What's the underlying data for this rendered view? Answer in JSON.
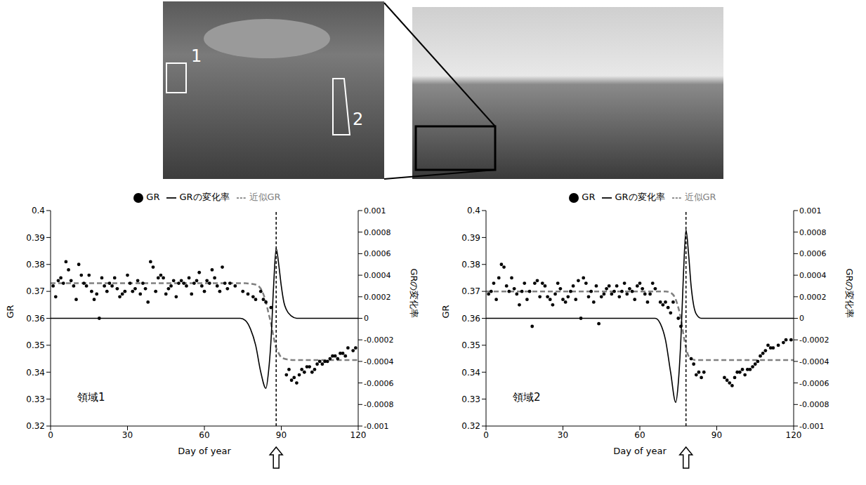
{
  "photos": {
    "labels": [
      "1",
      "2"
    ]
  },
  "chart_data": [
    {
      "type": "line",
      "annotation": "領域1",
      "x_label": "Day of year",
      "y_label": "GR",
      "y2_label": "GRの変化率",
      "xlim": [
        0,
        120
      ],
      "xticks": [
        0,
        30,
        60,
        90,
        120
      ],
      "ylim": [
        0.32,
        0.4
      ],
      "yticks": [
        0.32,
        0.33,
        0.34,
        0.35,
        0.36,
        0.37,
        0.38,
        0.39,
        0.4
      ],
      "y2lim": [
        -0.001,
        0.001
      ],
      "y2ticks": [
        -0.001,
        -0.0008,
        -0.0006,
        -0.0004,
        -0.0002,
        0,
        0.0002,
        0.0004,
        0.0006,
        0.0008,
        0.001
      ],
      "reference_x": 88,
      "legend": "top",
      "series": [
        {
          "name": "GR",
          "type": "scatter",
          "marker": "circle",
          "color": "#000000",
          "x": [
            1,
            2,
            3,
            4,
            5,
            6,
            7,
            8,
            9,
            10,
            11,
            12,
            13,
            14,
            15,
            16,
            17,
            18,
            19,
            20,
            21,
            22,
            23,
            24,
            25,
            26,
            27,
            28,
            29,
            30,
            31,
            32,
            33,
            34,
            35,
            36,
            37,
            38,
            39,
            40,
            41,
            42,
            43,
            44,
            45,
            46,
            47,
            48,
            49,
            50,
            51,
            52,
            53,
            54,
            55,
            56,
            57,
            58,
            59,
            60,
            61,
            62,
            63,
            64,
            65,
            66,
            67,
            68,
            69,
            70,
            72,
            75,
            77,
            79,
            80,
            82,
            83,
            84,
            86,
            92,
            93,
            94,
            95,
            96,
            97,
            98,
            99,
            100,
            101,
            102,
            103,
            104,
            105,
            106,
            107,
            108,
            109,
            110,
            111,
            112,
            113,
            114,
            115,
            116,
            118,
            119
          ],
          "values": [
            0.372,
            0.368,
            0.374,
            0.375,
            0.373,
            0.381,
            0.378,
            0.374,
            0.372,
            0.367,
            0.38,
            0.376,
            0.373,
            0.372,
            0.376,
            0.37,
            0.367,
            0.369,
            0.36,
            0.375,
            0.372,
            0.37,
            0.373,
            0.372,
            0.375,
            0.371,
            0.368,
            0.369,
            0.37,
            0.376,
            0.373,
            0.37,
            0.371,
            0.374,
            0.369,
            0.373,
            0.371,
            0.366,
            0.381,
            0.379,
            0.37,
            0.375,
            0.376,
            0.375,
            0.369,
            0.371,
            0.372,
            0.374,
            0.368,
            0.373,
            0.374,
            0.373,
            0.372,
            0.375,
            0.369,
            0.373,
            0.374,
            0.377,
            0.372,
            0.37,
            0.374,
            0.373,
            0.378,
            0.375,
            0.372,
            0.37,
            0.379,
            0.373,
            0.371,
            0.373,
            0.372,
            0.37,
            0.369,
            0.368,
            0.367,
            0.37,
            0.367,
            0.366,
            0.364,
            0.339,
            0.341,
            0.337,
            0.338,
            0.336,
            0.339,
            0.341,
            0.34,
            0.342,
            0.342,
            0.34,
            0.341,
            0.343,
            0.344,
            0.343,
            0.344,
            0.344,
            0.345,
            0.346,
            0.346,
            0.345,
            0.347,
            0.347,
            0.346,
            0.349,
            0.348,
            0.349
          ]
        },
        {
          "name": "近似GR",
          "type": "line",
          "line_style": "dashed",
          "color": "#808080",
          "x": [
            0,
            20,
            40,
            60,
            76,
            78,
            80,
            82,
            84,
            85,
            86,
            87,
            88,
            89,
            90,
            92,
            95,
            120
          ],
          "values": [
            0.373,
            0.373,
            0.373,
            0.373,
            0.373,
            0.3728,
            0.3725,
            0.371,
            0.366,
            0.362,
            0.358,
            0.353,
            0.349,
            0.347,
            0.3455,
            0.3448,
            0.3445,
            0.3445
          ]
        },
        {
          "name": "GRの変化率",
          "type": "line",
          "line_style": "solid",
          "color": "#000000",
          "axis": "y2",
          "x": [
            0,
            74,
            76,
            78,
            80,
            82,
            84,
            85,
            86,
            87,
            88,
            89,
            90,
            91,
            92,
            94,
            96,
            120
          ],
          "values": [
            0,
            0,
            -2e-05,
            -0.0001,
            -0.00025,
            -0.0005,
            -0.00065,
            -0.0005,
            -0.0002,
            0.0003,
            0.00065,
            0.0005,
            0.0003,
            0.00015,
            8e-05,
            2e-05,
            0,
            0
          ]
        }
      ]
    },
    {
      "type": "line",
      "annotation": "領域2",
      "x_label": "Day of year",
      "y_label": "GR",
      "y2_label": "GRの変化率",
      "xlim": [
        0,
        120
      ],
      "xticks": [
        0,
        30,
        60,
        90,
        120
      ],
      "ylim": [
        0.32,
        0.4
      ],
      "yticks": [
        0.32,
        0.33,
        0.34,
        0.35,
        0.36,
        0.37,
        0.38,
        0.39,
        0.4
      ],
      "y2lim": [
        -0.001,
        0.001
      ],
      "y2ticks": [
        -0.001,
        -0.0008,
        -0.0006,
        -0.0004,
        -0.0002,
        0,
        0.0002,
        0.0004,
        0.0006,
        0.0008,
        0.001
      ],
      "reference_x": 78,
      "legend": "top",
      "series": [
        {
          "name": "GR",
          "type": "scatter",
          "marker": "circle",
          "color": "#000000",
          "x": [
            1,
            2,
            3,
            4,
            5,
            6,
            7,
            8,
            9,
            10,
            11,
            12,
            13,
            14,
            15,
            16,
            17,
            18,
            19,
            20,
            21,
            22,
            23,
            24,
            25,
            26,
            27,
            28,
            29,
            30,
            31,
            32,
            33,
            34,
            35,
            36,
            37,
            38,
            39,
            40,
            41,
            42,
            43,
            44,
            45,
            46,
            47,
            48,
            49,
            50,
            51,
            52,
            53,
            54,
            55,
            56,
            57,
            58,
            59,
            60,
            61,
            62,
            63,
            64,
            65,
            66,
            68,
            69,
            70,
            71,
            72,
            73,
            75,
            76,
            80,
            81,
            82,
            83,
            84,
            85,
            93,
            94,
            95,
            96,
            97,
            98,
            99,
            100,
            101,
            102,
            103,
            104,
            105,
            106,
            107,
            108,
            109,
            110,
            111,
            112,
            114,
            116,
            117,
            119
          ],
          "values": [
            0.369,
            0.37,
            0.373,
            0.367,
            0.375,
            0.38,
            0.379,
            0.372,
            0.37,
            0.375,
            0.371,
            0.369,
            0.365,
            0.37,
            0.373,
            0.367,
            0.37,
            0.357,
            0.373,
            0.374,
            0.368,
            0.373,
            0.372,
            0.368,
            0.367,
            0.365,
            0.369,
            0.373,
            0.371,
            0.367,
            0.366,
            0.368,
            0.37,
            0.372,
            0.367,
            0.374,
            0.36,
            0.375,
            0.373,
            0.368,
            0.37,
            0.366,
            0.372,
            0.358,
            0.368,
            0.369,
            0.371,
            0.372,
            0.369,
            0.37,
            0.372,
            0.368,
            0.37,
            0.373,
            0.369,
            0.371,
            0.37,
            0.367,
            0.372,
            0.373,
            0.371,
            0.369,
            0.366,
            0.369,
            0.373,
            0.371,
            0.366,
            0.365,
            0.366,
            0.364,
            0.362,
            0.366,
            0.36,
            0.357,
            0.345,
            0.343,
            0.339,
            0.34,
            0.338,
            0.34,
            0.338,
            0.337,
            0.336,
            0.335,
            0.338,
            0.34,
            0.34,
            0.341,
            0.339,
            0.341,
            0.341,
            0.342,
            0.343,
            0.344,
            0.346,
            0.347,
            0.348,
            0.35,
            0.349,
            0.349,
            0.35,
            0.351,
            0.352,
            0.352
          ]
        },
        {
          "name": "近似GR",
          "type": "line",
          "line_style": "dashed",
          "color": "#808080",
          "x": [
            0,
            60,
            70,
            72,
            74,
            75,
            76,
            77,
            78,
            79,
            80,
            82,
            120
          ],
          "values": [
            0.37,
            0.37,
            0.37,
            0.3695,
            0.367,
            0.364,
            0.36,
            0.354,
            0.349,
            0.346,
            0.345,
            0.3445,
            0.3445
          ]
        },
        {
          "name": "GRの変化率",
          "type": "line",
          "line_style": "solid",
          "color": "#000000",
          "axis": "y2",
          "x": [
            0,
            66,
            68,
            70,
            72,
            74,
            75,
            76,
            77,
            78,
            79,
            80,
            81,
            82,
            84,
            120
          ],
          "values": [
            0,
            0,
            -5e-05,
            -0.0002,
            -0.0005,
            -0.00078,
            -0.0006,
            -0.0002,
            0.0004,
            0.00082,
            0.0006,
            0.0003,
            0.00012,
            4e-05,
            0,
            0
          ]
        }
      ]
    }
  ]
}
